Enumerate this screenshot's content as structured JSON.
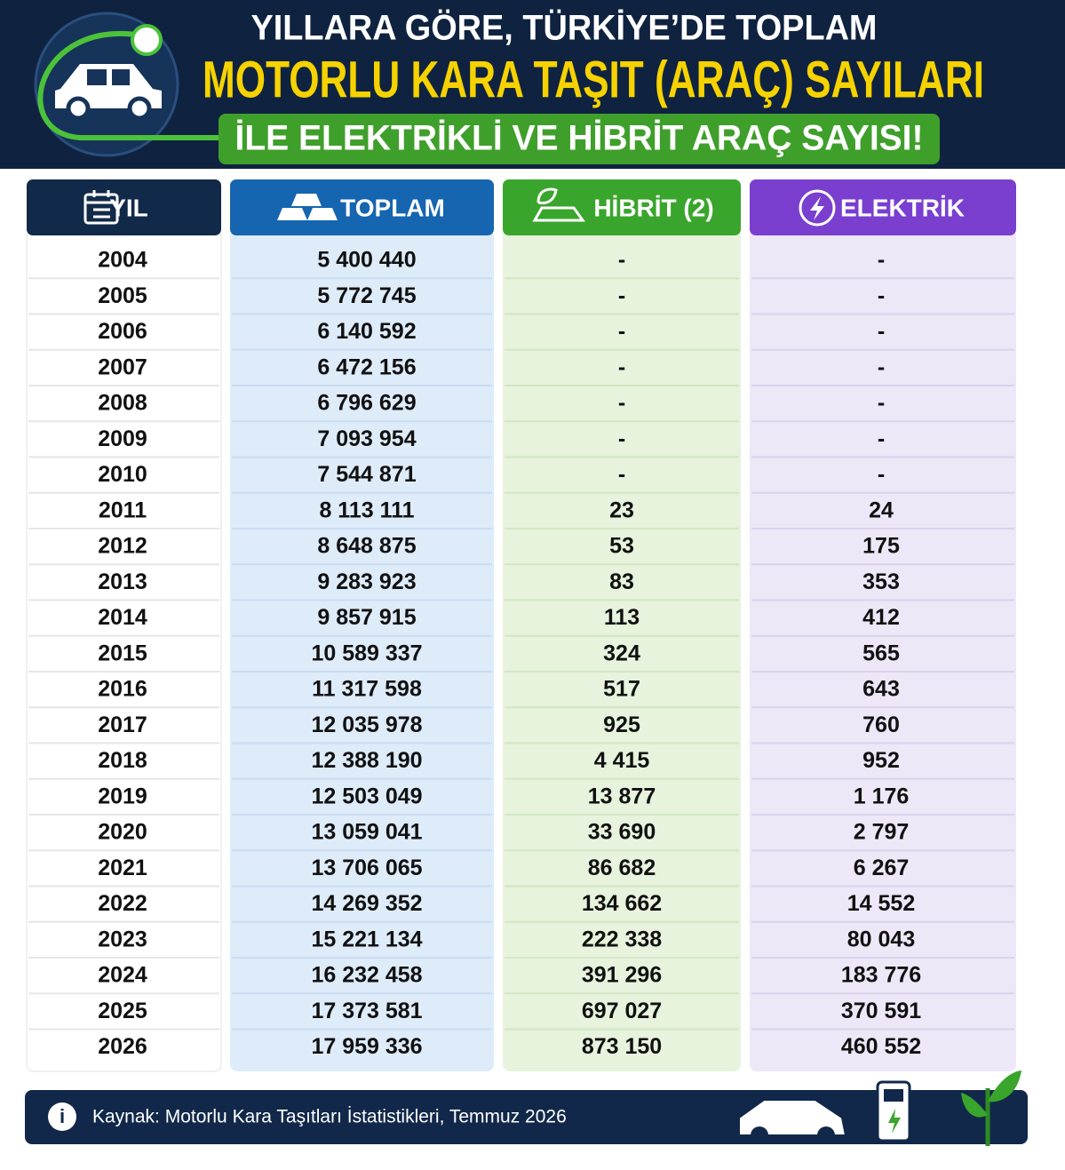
{
  "header": {
    "line1": "YILLARA GÖRE, TÜRKİYE’DE TOPLAM",
    "line2": "MOTORLU KARA TAŞIT (ARAÇ) SAYILARI",
    "line3": "İLE ELEKTRİKLİ VE HİBRİT ARAÇ SAYISI!"
  },
  "table": {
    "columns": [
      "YIL",
      "TOPLAM",
      "HİBRİT (2)",
      "ELEKTRİK"
    ],
    "rows": [
      [
        "2004",
        "5 400 440",
        "-",
        "-"
      ],
      [
        "2005",
        "5 772 745",
        "-",
        "-"
      ],
      [
        "2006",
        "6 140 592",
        "-",
        "-"
      ],
      [
        "2007",
        "6 472 156",
        "-",
        "-"
      ],
      [
        "2008",
        "6 796 629",
        "-",
        "-"
      ],
      [
        "2009",
        "7 093 954",
        "-",
        "-"
      ],
      [
        "2010",
        "7 544 871",
        "-",
        "-"
      ],
      [
        "2011",
        "8 113 111",
        "23",
        "24"
      ],
      [
        "2012",
        "8 648 875",
        "53",
        "175"
      ],
      [
        "2013",
        "9 283 923",
        "83",
        "353"
      ],
      [
        "2014",
        "9 857 915",
        "113",
        "412"
      ],
      [
        "2015",
        "10 589 337",
        "324",
        "565"
      ],
      [
        "2016",
        "11 317 598",
        "517",
        "643"
      ],
      [
        "2017",
        "12 035 978",
        "925",
        "760"
      ],
      [
        "2018",
        "12 388 190",
        "4 415",
        "952"
      ],
      [
        "2019",
        "12 503 049",
        "13 877",
        "1 176"
      ],
      [
        "2020",
        "13 059 041",
        "33 690",
        "2 797"
      ],
      [
        "2021",
        "13 706 065",
        "86 682",
        "6 267"
      ],
      [
        "2022",
        "14 269 352",
        "134 662",
        "14 552"
      ],
      [
        "2023",
        "15 221 134",
        "222 338",
        "80 043"
      ],
      [
        "2024",
        "16 232 458",
        "391 296",
        "183 776"
      ],
      [
        "2025",
        "17 373 581",
        "697 027",
        "370 591"
      ],
      [
        "2026",
        "17 959 336",
        "873 150",
        "460 552"
      ]
    ]
  },
  "footer": {
    "source": "Kaynak: Motorlu Kara Taşıtları İstatistikleri, Temmuz 2026"
  }
}
